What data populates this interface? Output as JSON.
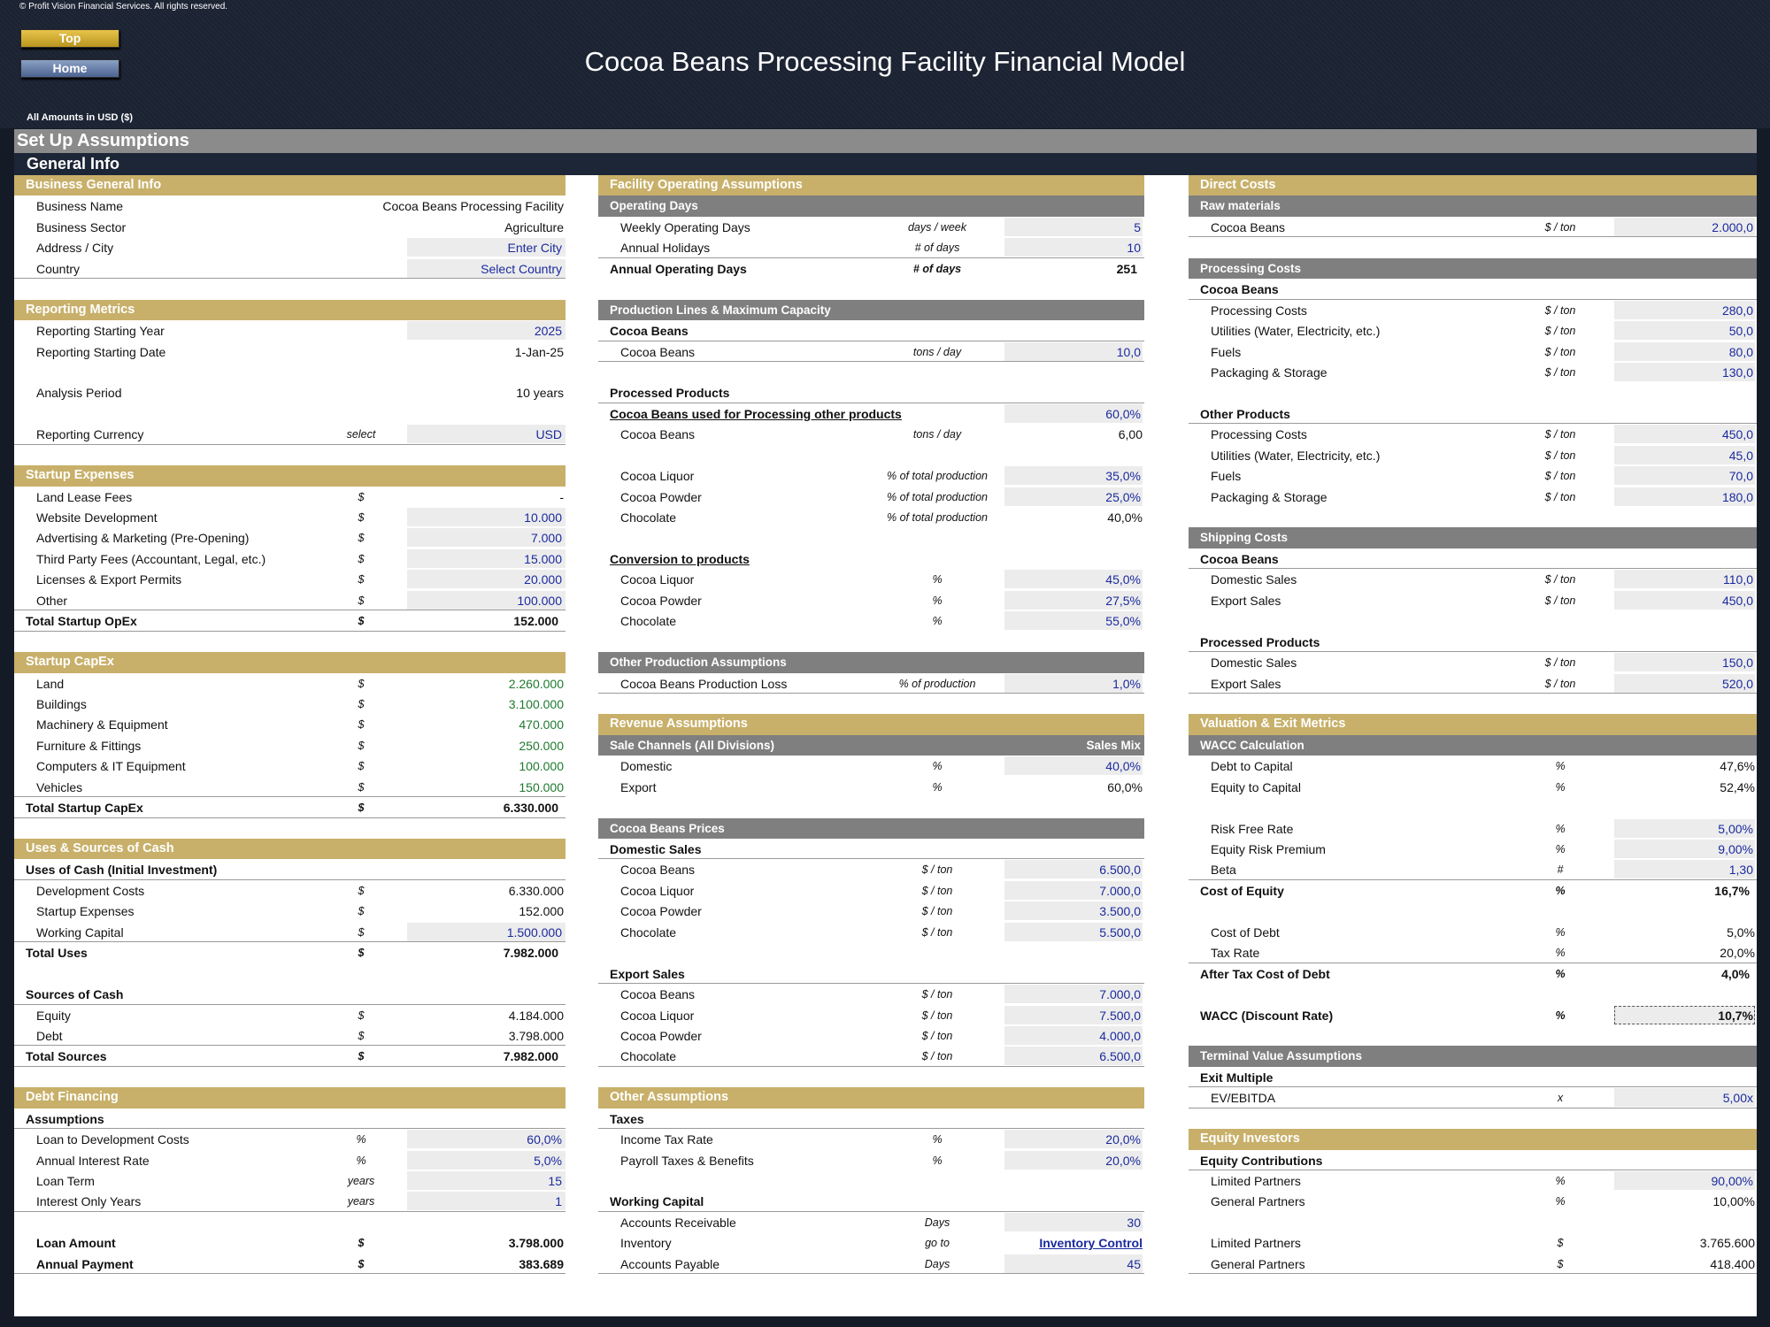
{
  "header": {
    "copyright": "© Profit Vision Financial Services. All rights reserved.",
    "title": "Cocoa Beans Processing Facility Financial Model",
    "top_button": "Top",
    "home_button": "Home",
    "amounts": "All Amounts in  USD ($)",
    "setup_title": "Set Up Assumptions",
    "general_info": "General Info"
  },
  "left": {
    "business": {
      "title": "Business General Info",
      "rows": [
        [
          "Business Name",
          "",
          "Cocoa Beans Processing Facility"
        ],
        [
          "Business Sector",
          "",
          "Agriculture"
        ],
        [
          "Address / City",
          "",
          "Enter City"
        ],
        [
          "Country",
          "",
          "Select Country"
        ]
      ]
    },
    "reporting": {
      "title": "Reporting Metrics",
      "rows": [
        [
          "Reporting Starting Year",
          "",
          "2025"
        ],
        [
          "Reporting Starting Date",
          "",
          "1-Jan-25"
        ],
        [
          "Analysis Period",
          "",
          "10 years"
        ],
        [
          "Reporting Currency",
          "select",
          "USD"
        ]
      ]
    },
    "startup": {
      "title": "Startup Expenses",
      "rows": [
        [
          "Land Lease Fees",
          "$",
          "-"
        ],
        [
          "Website Development",
          "$",
          "10.000"
        ],
        [
          "Advertising & Marketing (Pre-Opening)",
          "$",
          "7.000"
        ],
        [
          "Third Party Fees (Accountant, Legal, etc.)",
          "$",
          "15.000"
        ],
        [
          "Licenses & Export Permits",
          "$",
          "20.000"
        ],
        [
          "Other",
          "$",
          "100.000"
        ]
      ],
      "total": [
        "Total Startup OpEx",
        "$",
        "152.000"
      ]
    },
    "capex": {
      "title": "Startup CapEx",
      "rows": [
        [
          "Land",
          "$",
          "2.260.000"
        ],
        [
          "Buildings",
          "$",
          "3.100.000"
        ],
        [
          "Machinery & Equipment",
          "$",
          "470.000"
        ],
        [
          "Furniture & Fittings",
          "$",
          "250.000"
        ],
        [
          "Computers & IT Equipment",
          "$",
          "100.000"
        ],
        [
          "Vehicles",
          "$",
          "150.000"
        ]
      ],
      "total": [
        "Total Startup CapEx",
        "$",
        "6.330.000"
      ]
    },
    "uses": {
      "title": "Uses & Sources of Cash",
      "uses_header": "Uses of Cash (Initial Investment)",
      "uses_rows": [
        [
          "Development Costs",
          "$",
          "6.330.000"
        ],
        [
          "Startup Expenses",
          "$",
          "152.000"
        ],
        [
          "Working Capital",
          "$",
          "1.500.000"
        ]
      ],
      "uses_total": [
        "Total Uses",
        "$",
        "7.982.000"
      ],
      "sources_header": "Sources of Cash",
      "sources_rows": [
        [
          "Equity",
          "$",
          "4.184.000"
        ],
        [
          "Debt",
          "$",
          "3.798.000"
        ]
      ],
      "sources_total": [
        "Total Sources",
        "$",
        "7.982.000"
      ]
    },
    "debt": {
      "title": "Debt Financing",
      "assumptions": "Assumptions",
      "rows": [
        [
          "Loan to Development Costs",
          "%",
          "60,0%"
        ],
        [
          "Annual Interest Rate",
          "%",
          "5,0%"
        ],
        [
          "Loan Term",
          "years",
          "15"
        ],
        [
          "Interest Only Years",
          "years",
          "1"
        ]
      ],
      "loan_amount": [
        "Loan Amount",
        "$",
        "3.798.000"
      ],
      "annual_payment": [
        "Annual Payment",
        "$",
        "383.689"
      ]
    }
  },
  "middle": {
    "facility": {
      "title": "Facility Operating Assumptions",
      "sub": "Operating Days",
      "rows": [
        [
          "Weekly Operating Days",
          "days / week",
          "5"
        ],
        [
          "Annual Holidays",
          "# of days",
          "10"
        ]
      ],
      "total": [
        "Annual Operating Days",
        "# of days",
        "251"
      ]
    },
    "production": {
      "title": "Production Lines & Maximum Capacity",
      "cocoa_header": "Cocoa Beans",
      "cocoa_row": [
        "Cocoa Beans",
        "tons / day",
        "10,0"
      ],
      "processed_header": "Processed Products",
      "used_row": [
        "Cocoa Beans used for Processing other products",
        "",
        "60,0%"
      ],
      "used_beans": [
        "Cocoa Beans",
        "tons / day",
        "6,00"
      ],
      "mix_rows": [
        [
          "Cocoa Liquor",
          "% of total production",
          "35,0%"
        ],
        [
          "Cocoa Powder",
          "% of total production",
          "25,0%"
        ],
        [
          "Chocolate",
          "% of total production",
          "40,0%"
        ]
      ],
      "conversion_header": "Conversion to products",
      "conversion_rows": [
        [
          "Cocoa Liquor",
          "%",
          "45,0%"
        ],
        [
          "Cocoa Powder",
          "%",
          "27,5%"
        ],
        [
          "Chocolate",
          "%",
          "55,0%"
        ]
      ]
    },
    "other_prod": {
      "title": "Other Production Assumptions",
      "row": [
        "Cocoa Beans Production Loss",
        "% of production",
        "1,0%"
      ]
    },
    "revenue": {
      "title": "Revenue Assumptions",
      "channels_header": "Sale Channels (All Divisions)",
      "channels_right": "Sales Mix",
      "channels": [
        [
          "Domestic",
          "%",
          "40,0%"
        ],
        [
          "Export",
          "%",
          "60,0%"
        ]
      ],
      "prices_title": "Cocoa Beans Prices",
      "domestic_header": "Domestic Sales",
      "domestic": [
        [
          "Cocoa Beans",
          "$ / ton",
          "6.500,0"
        ],
        [
          "Cocoa Liquor",
          "$ / ton",
          "7.000,0"
        ],
        [
          "Cocoa Powder",
          "$ / ton",
          "3.500,0"
        ],
        [
          "Chocolate",
          "$ / ton",
          "5.500,0"
        ]
      ],
      "export_header": "Export Sales",
      "export": [
        [
          "Cocoa Beans",
          "$ / ton",
          "7.000,0"
        ],
        [
          "Cocoa Liquor",
          "$ / ton",
          "7.500,0"
        ],
        [
          "Cocoa Powder",
          "$ / ton",
          "4.000,0"
        ],
        [
          "Chocolate",
          "$ / ton",
          "6.500,0"
        ]
      ]
    },
    "other": {
      "title": "Other Assumptions",
      "taxes_header": "Taxes",
      "taxes": [
        [
          "Income Tax Rate",
          "%",
          "20,0%"
        ],
        [
          "Payroll Taxes & Benefits",
          "%",
          "20,0%"
        ]
      ],
      "wc_header": "Working Capital",
      "wc": [
        [
          "Accounts Receivable",
          "Days",
          "30"
        ],
        [
          "Inventory",
          "go to",
          "Inventory Control"
        ],
        [
          "Accounts Payable",
          "Days",
          "45"
        ]
      ]
    }
  },
  "right": {
    "direct": {
      "title": "Direct Costs",
      "raw_header": "Raw materials",
      "raw": [
        [
          "Cocoa Beans",
          "$ / ton",
          "2.000,0"
        ]
      ],
      "processing_title": "Processing Costs",
      "beans_header": "Cocoa Beans",
      "beans": [
        [
          "Processing Costs",
          "$ / ton",
          "280,0"
        ],
        [
          "Utilities (Water, Electricity, etc.)",
          "$ / ton",
          "50,0"
        ],
        [
          "Fuels",
          "$ / ton",
          "80,0"
        ],
        [
          "Packaging & Storage",
          "$ / ton",
          "130,0"
        ]
      ],
      "other_header": "Other Products",
      "other": [
        [
          "Processing Costs",
          "$ / ton",
          "450,0"
        ],
        [
          "Utilities (Water, Electricity, etc.)",
          "$ / ton",
          "45,0"
        ],
        [
          "Fuels",
          "$ / ton",
          "70,0"
        ],
        [
          "Packaging & Storage",
          "$ / ton",
          "180,0"
        ]
      ],
      "shipping_title": "Shipping Costs",
      "ship_beans_header": "Cocoa Beans",
      "ship_beans": [
        [
          "Domestic Sales",
          "$ / ton",
          "110,0"
        ],
        [
          "Export Sales",
          "$ / ton",
          "450,0"
        ]
      ],
      "ship_proc_header": "Processed Products",
      "ship_proc": [
        [
          "Domestic Sales",
          "$ / ton",
          "150,0"
        ],
        [
          "Export Sales",
          "$ / ton",
          "520,0"
        ]
      ]
    },
    "valuation": {
      "title": "Valuation & Exit Metrics",
      "wacc_header": "WACC Calculation",
      "cap": [
        [
          "Debt to Capital",
          "%",
          "47,6%"
        ],
        [
          "Equity to Capital",
          "%",
          "52,4%"
        ]
      ],
      "equity": [
        [
          "Risk Free Rate",
          "%",
          "5,00%"
        ],
        [
          "Equity Risk Premium",
          "%",
          "9,00%"
        ],
        [
          "Beta",
          "#",
          "1,30"
        ]
      ],
      "cost_equity": [
        "Cost of Equity",
        "%",
        "16,7%"
      ],
      "debt": [
        [
          "Cost of Debt",
          "%",
          "5,0%"
        ],
        [
          "Tax Rate",
          "%",
          "20,0%"
        ]
      ],
      "after_tax": [
        "After Tax Cost of Debt",
        "%",
        "4,0%"
      ],
      "wacc": [
        "WACC (Discount Rate)",
        "%",
        "10,7%"
      ],
      "terminal_title": "Terminal Value Assumptions",
      "exit_header": "Exit Multiple",
      "exit": [
        "EV/EBITDA",
        "x",
        "5,00x"
      ]
    },
    "investors": {
      "title": "Equity Investors",
      "contrib_header": "Equity Contributions",
      "pct": [
        [
          "Limited Partners",
          "%",
          "90,00%"
        ],
        [
          "General Partners",
          "%",
          "10,00%"
        ]
      ],
      "amt": [
        [
          "Limited Partners",
          "$",
          "3.765.600"
        ],
        [
          "General Partners",
          "$",
          "418.400"
        ]
      ]
    }
  }
}
